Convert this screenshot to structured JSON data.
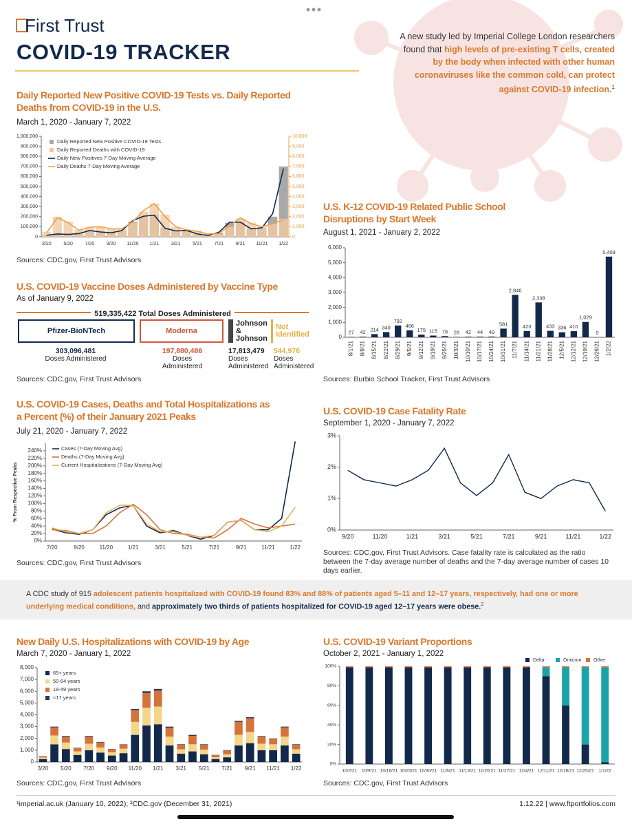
{
  "header": {
    "logo": "First Trust",
    "title": "COVID-19 TRACKER"
  },
  "callout": {
    "text": "A new study led by Imperial College London researchers found that",
    "highlight": "high levels of pre-existing T cells, created by the body when infected with other human coronaviruses like the common cold, can protect against COVID-19 infection.",
    "note": "1"
  },
  "vaccine_doses": {
    "title": "U.S. COVID-19 Vaccine Doses Administered by Vaccine Type",
    "subtitle": "As of January 9, 2022",
    "total": "519,335,422 Total Doses Administered",
    "source": "Sources: CDC.gov, First Trust Advisors",
    "items": [
      {
        "name": "Pfizer-BioNTech",
        "doses": "303,096,481",
        "label": "Doses Administered"
      },
      {
        "name": "Moderna",
        "doses": "197,880,486",
        "label": "Doses Administered"
      },
      {
        "name": "Johnson & Johnson",
        "doses": "17,813,479",
        "label": "Doses Administered"
      },
      {
        "name": "Not Identified",
        "doses": "544,976",
        "label": "Doses Administered"
      }
    ]
  },
  "banner": {
    "parts": [
      "A CDC study of 915",
      "adolescent patients hospitalized with COVID-19 found 83% and 88% of patients aged 5–11 and 12–17 years, respectively, had one or more underlying medical conditions,",
      "and",
      "approximately two thirds of patients hospitalized for COVID-19 aged 12–17 years were obese."
    ],
    "note": "2"
  },
  "footer": {
    "notes": "¹imperial.ac.uk (January 10, 2022); ²CDC.gov (December 31, 2021)",
    "date_site": "1.12.22 | www.ftportfolios.com"
  },
  "chart_data": [
    {
      "type": "combo",
      "title": "Daily Reported New Positive COVID-19 Tests vs. Daily Reported Deaths from COVID-19 in the U.S.",
      "subtitle": "March 1, 2020 - January 7, 2022",
      "source": "Sources: CDC.gov, First Trust Advisors",
      "categories": [
        "3/20",
        null,
        "5/20",
        null,
        "7/20",
        null,
        "9/20",
        null,
        "11/20",
        null,
        "1/21",
        null,
        "3/21",
        null,
        "5/21",
        null,
        "7/21",
        null,
        "9/21",
        null,
        "11/21",
        null,
        "1/22"
      ],
      "series": [
        {
          "name": "Daily Reported New Positive COVID-19 Tests",
          "kind": "bar",
          "color": "#a9a9a9",
          "values": [
            20000,
            30000,
            25000,
            30000,
            65000,
            50000,
            40000,
            60000,
            150000,
            210000,
            220000,
            90000,
            60000,
            65000,
            30000,
            12000,
            40000,
            140000,
            150000,
            80000,
            85000,
            200000,
            700000
          ]
        },
        {
          "name": "Daily Reported Deaths with COVID-19",
          "kind": "bar",
          "axis": "y2",
          "color": "#f3c9a0",
          "values": [
            500,
            2000,
            1500,
            700,
            900,
            1000,
            800,
            800,
            1400,
            2500,
            3300,
            2200,
            1000,
            700,
            600,
            300,
            300,
            1000,
            1800,
            1400,
            1000,
            1300,
            1800
          ]
        },
        {
          "name": "Daily New Positives 7-Day Moving Average",
          "kind": "line",
          "color": "#13294b",
          "values": [
            15000,
            28000,
            24000,
            32000,
            62000,
            48000,
            40000,
            62000,
            160000,
            205000,
            215000,
            85000,
            58000,
            64000,
            28000,
            13000,
            45000,
            145000,
            145000,
            78000,
            90000,
            230000,
            680000
          ]
        },
        {
          "name": "Daily Deaths 7-Day Moving Average",
          "kind": "line",
          "axis": "y2",
          "color": "#e8a04a",
          "values": [
            400,
            1900,
            1400,
            650,
            950,
            1000,
            780,
            800,
            1500,
            2600,
            3300,
            2000,
            1000,
            700,
            550,
            280,
            330,
            1100,
            1900,
            1300,
            1000,
            1300,
            1700
          ]
        }
      ],
      "ylim": [
        0,
        1000000
      ],
      "yticks": [
        0,
        {
          "value": 100000,
          "label": "100,000"
        },
        {
          "value": 200000,
          "label": "200,000"
        },
        {
          "value": 300000,
          "label": "300,000"
        },
        {
          "value": 400000,
          "label": "400,000"
        },
        {
          "value": 500000,
          "label": "500,000"
        },
        {
          "value": 600000,
          "label": "600,000"
        },
        {
          "value": 700000,
          "label": "700,000"
        },
        {
          "value": 800000,
          "label": "800,000"
        },
        {
          "value": 900000,
          "label": "900,000"
        },
        {
          "value": 1000000,
          "label": "1,000,000"
        }
      ],
      "y2lim": [
        0,
        10000
      ],
      "y2ticks": [
        0,
        {
          "value": 1000,
          "label": "1,000"
        },
        {
          "value": 2000,
          "label": "2,000"
        },
        {
          "value": 3000,
          "label": "3,000"
        },
        {
          "value": 4000,
          "label": "4,000"
        },
        {
          "value": 5000,
          "label": "5,000"
        },
        {
          "value": 6000,
          "label": "6,000"
        },
        {
          "value": 7000,
          "label": "7,000"
        },
        {
          "value": 8000,
          "label": "8,000"
        },
        {
          "value": 9000,
          "label": "9,000"
        },
        {
          "value": 10000,
          "label": "10,000"
        }
      ],
      "legend": "upper left"
    },
    {
      "type": "bar",
      "title": "U.S. K-12 COVID-19 Related Public School Disruptions by Start Week",
      "subtitle": "August 1, 2021 - January 2, 2022",
      "source": "Sources: Burbio School Tracker, First Trust Advisors",
      "categories": [
        "8/1/21",
        "8/8/21",
        "8/15/21",
        "8/22/21",
        "8/29/21",
        "9/5/21",
        "9/12/21",
        "9/19/21",
        "9/26/21",
        "10/3/21",
        "10/10/21",
        "10/17/21",
        "10/24/21",
        "10/31/21",
        "11/7/21",
        "11/14/21",
        "11/21/21",
        "11/28/21",
        "12/5/21",
        "12/12/21",
        "12/19/21",
        "12/26/21",
        "1/2/22"
      ],
      "values": [
        27,
        42,
        214,
        349,
        792,
        466,
        175,
        115,
        79,
        28,
        42,
        44,
        49,
        581,
        2846,
        423,
        2338,
        433,
        336,
        410,
        1029,
        0,
        5409
      ],
      "value_labels": [
        "27",
        "42",
        "214",
        "349",
        "792",
        "466",
        "175",
        "115",
        "79",
        "28",
        "42",
        "44",
        "49",
        "581",
        "2,846",
        "423",
        "2,338",
        "433",
        "336",
        "410",
        "1,029",
        "0",
        "5,409"
      ],
      "color": "#13294b",
      "ylim": [
        0,
        6000
      ],
      "yticks": [
        0,
        {
          "value": 1000,
          "label": "1,000"
        },
        {
          "value": 2000,
          "label": "2,000"
        },
        {
          "value": 3000,
          "label": "3,000"
        },
        {
          "value": 4000,
          "label": "4,000"
        },
        {
          "value": 5000,
          "label": "5,000"
        },
        {
          "value": 6000,
          "label": "6,000"
        }
      ]
    },
    {
      "type": "line",
      "title": "U.S. COVID-19 Cases, Deaths and Total Hospitalizations as a Percent (%) of their January 2021 Peaks",
      "subtitle": "July 21, 2020 - January 7, 2022",
      "source": "Sources: CDC.gov, First Trust Advisors",
      "ylabel": "% From Respective Peaks",
      "categories": [
        "7/20",
        null,
        "9/20",
        null,
        "11/20",
        null,
        "1/21",
        null,
        "3/21",
        null,
        "5/21",
        null,
        "7/21",
        null,
        "9/21",
        null,
        "11/21",
        null,
        "1/22"
      ],
      "series": [
        {
          "name": "Cases (7-Day Moving Avg)",
          "color": "#13294b",
          "values": [
            32,
            22,
            18,
            30,
            70,
            88,
            95,
            40,
            22,
            28,
            15,
            5,
            15,
            50,
            55,
            30,
            30,
            60,
            265
          ]
        },
        {
          "name": "Deaths (7-Day Moving Avg)",
          "color": "#d4743a",
          "values": [
            30,
            28,
            20,
            20,
            40,
            75,
            98,
            70,
            30,
            20,
            18,
            10,
            8,
            30,
            60,
            45,
            35,
            40,
            45
          ]
        },
        {
          "name": "Current Hospitalizations (7-Day Moving Avg)",
          "color": "#e8b060",
          "values": [
            35,
            25,
            20,
            30,
            75,
            95,
            95,
            45,
            25,
            25,
            15,
            10,
            15,
            50,
            55,
            30,
            25,
            40,
            90
          ]
        }
      ],
      "ylim": [
        0,
        260
      ],
      "yticks": [
        {
          "value": 0,
          "label": "0%"
        },
        {
          "value": 20,
          "label": "20%"
        },
        {
          "value": 40,
          "label": "40%"
        },
        {
          "value": 60,
          "label": "60%"
        },
        {
          "value": 80,
          "label": "80%"
        },
        {
          "value": 100,
          "label": "100%"
        },
        {
          "value": 120,
          "label": "120%"
        },
        {
          "value": 140,
          "label": "140%"
        },
        {
          "value": 160,
          "label": "160%"
        },
        {
          "value": 180,
          "label": "180%"
        },
        {
          "value": 200,
          "label": "200%"
        },
        {
          "value": 220,
          "label": "220%"
        },
        {
          "value": 240,
          "label": "240%"
        }
      ],
      "legend": "upper left"
    },
    {
      "type": "line",
      "title": "U.S. COVID-19 Case Fatality Rate",
      "subtitle": "September 1, 2020 - January 7, 2022",
      "source": "Sources: CDC.gov, First Trust Advisors. Case fatality rate is calculated as the ratio between the 7-day average number of deaths and the 7-day average number of cases 10 days earlier.",
      "categories": [
        "9/20",
        null,
        "11/20",
        null,
        "1/21",
        null,
        "3/21",
        null,
        "5/21",
        null,
        "7/21",
        null,
        "9/21",
        null,
        "11/21",
        null,
        "1/22"
      ],
      "values": [
        1.9,
        1.6,
        1.5,
        1.4,
        1.6,
        1.9,
        2.6,
        1.5,
        1.1,
        1.5,
        2.4,
        1.2,
        1.0,
        1.4,
        1.6,
        1.5,
        0.6
      ],
      "color": "#13294b",
      "ylim": [
        0,
        3
      ],
      "yticks": [
        {
          "value": 0,
          "label": "0%"
        },
        {
          "value": 1,
          "label": "1%"
        },
        {
          "value": 2,
          "label": "2%"
        },
        {
          "value": 3,
          "label": "3%"
        }
      ]
    },
    {
      "type": "stacked_bar",
      "title": "New Daily U.S. Hospitalizations with COVID-19 by Age",
      "subtitle": "March 7, 2020 - January 1, 2022",
      "source": "Sources: CDC.gov, First Trust Advisors",
      "categories": [
        "3/20",
        null,
        "5/20",
        null,
        "7/20",
        null,
        "9/20",
        null,
        "11/20",
        null,
        "1/21",
        null,
        "3/21",
        null,
        "5/21",
        null,
        "7/21",
        null,
        "9/21",
        null,
        "11/21",
        null,
        "1/22"
      ],
      "series": [
        {
          "name": "65+ years",
          "color": "#13294b",
          "values": [
            250,
            1500,
            1100,
            600,
            1000,
            800,
            550,
            750,
            2300,
            3100,
            3200,
            1400,
            700,
            900,
            650,
            250,
            400,
            1400,
            1600,
            1000,
            1000,
            1400,
            700
          ]
        },
        {
          "name": "50-64 years",
          "color": "#f5d58a",
          "values": [
            130,
            750,
            550,
            300,
            550,
            430,
            280,
            380,
            1100,
            1500,
            1500,
            750,
            380,
            600,
            400,
            150,
            250,
            900,
            950,
            550,
            500,
            750,
            380
          ]
        },
        {
          "name": "18-49 years",
          "color": "#d4743a",
          "values": [
            110,
            680,
            480,
            270,
            580,
            420,
            250,
            340,
            1000,
            1250,
            1350,
            750,
            380,
            720,
            400,
            180,
            320,
            1100,
            1150,
            600,
            460,
            780,
            380
          ]
        },
        {
          "name": "<17 years",
          "color": "#2b3a55",
          "values": [
            10,
            70,
            70,
            30,
            70,
            50,
            20,
            30,
            100,
            150,
            150,
            100,
            40,
            80,
            50,
            20,
            30,
            100,
            100,
            50,
            40,
            70,
            40
          ]
        }
      ],
      "ylim": [
        0,
        8000
      ],
      "yticks": [
        0,
        {
          "value": 1000,
          "label": "1,000"
        },
        {
          "value": 2000,
          "label": "2,000"
        },
        {
          "value": 3000,
          "label": "3,000"
        },
        {
          "value": 4000,
          "label": "4,000"
        },
        {
          "value": 5000,
          "label": "5,000"
        },
        {
          "value": 6000,
          "label": "6,000"
        },
        {
          "value": 7000,
          "label": "7,000"
        },
        {
          "value": 8000,
          "label": "8,000"
        }
      ],
      "legend": "upper left"
    },
    {
      "type": "stacked_bar",
      "title": "U.S. COVID-19 Variant Proportions",
      "subtitle": "October 2, 2021 - January 1, 2022",
      "source": "Sources: CDC.gov, First Trust Advisors",
      "categories": [
        "10/2/21",
        "10/9/21",
        "10/16/21",
        "10/23/21",
        "10/30/21",
        "11/6/21",
        "11/13/21",
        "11/20/21",
        "11/27/21",
        "12/4/21",
        "12/11/21",
        "12/18/21",
        "12/25/21",
        "1/1/22"
      ],
      "series": [
        {
          "name": "Delta",
          "color": "#13294b",
          "values": [
            99,
            99,
            99,
            99,
            99,
            99,
            99,
            99,
            99,
            99,
            90,
            60,
            20,
            2
          ]
        },
        {
          "name": "Omicron",
          "color": "#1aa3a8",
          "values": [
            0,
            0,
            0,
            0,
            0,
            0,
            0,
            0,
            0,
            0,
            9,
            39,
            79,
            97
          ]
        },
        {
          "name": "Other",
          "color": "#d4743a",
          "values": [
            1,
            1,
            1,
            1,
            1,
            1,
            1,
            1,
            1,
            1,
            1,
            1,
            1,
            1
          ]
        }
      ],
      "ylim": [
        0,
        100
      ],
      "yticks": [
        {
          "value": 0,
          "label": "0%"
        },
        {
          "value": 20,
          "label": "20%"
        },
        {
          "value": 40,
          "label": "40%"
        },
        {
          "value": 60,
          "label": "60%"
        },
        {
          "value": 80,
          "label": "80%"
        },
        {
          "value": 100,
          "label": "100%"
        }
      ],
      "legend": "top right"
    }
  ]
}
